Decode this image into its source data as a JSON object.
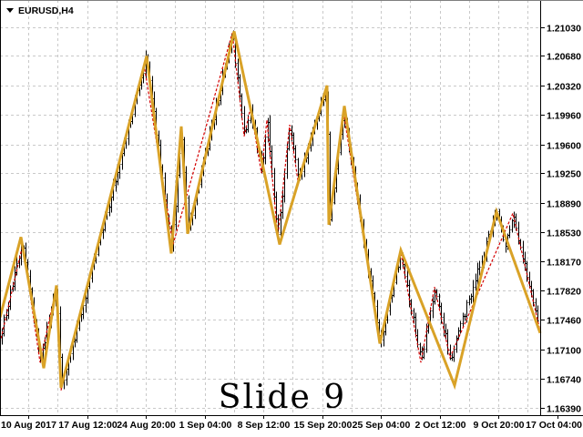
{
  "chart": {
    "symbol_label": "EURUSD,H4",
    "annotation": "Slide 9",
    "colors": {
      "background": "#ffffff",
      "grid": "#c9c9c9",
      "axis": "#000000",
      "bars": "#000000",
      "zigzag_primary": "#D9A227",
      "zigzag_secondary": "#D40000",
      "text": "#000000",
      "window_border": "#808080"
    }
  },
  "chart_data": {
    "type": "bar",
    "subtype": "ohlc-bars-with-zigzag-overlays",
    "symbol": "EURUSD",
    "timeframe": "H4",
    "title": "EURUSD,H4",
    "annotation": "Slide 9",
    "grid": {
      "visible": true,
      "style": "dashed"
    },
    "y_axis": {
      "side": "right",
      "labels": [
        "1.21030",
        "1.20680",
        "1.20320",
        "1.19960",
        "1.19600",
        "1.19250",
        "1.18890",
        "1.18530",
        "1.18170",
        "1.17820",
        "1.17460",
        "1.17100",
        "1.16740",
        "1.16390"
      ],
      "range": [
        1.1639,
        1.2103
      ]
    },
    "x_axis": {
      "labels": [
        "10 Aug 2017",
        "17 Aug 12:00",
        "24 Aug 20:00",
        "1 Sep 04:00",
        "8 Sep 12:00",
        "15 Sep 20:00",
        "25 Sep 04:00",
        "2 Oct 12:00",
        "9 Oct 20:00",
        "17 Oct 04:00"
      ]
    },
    "series": [
      {
        "name": "zigzag-primary",
        "color": "#D9A227",
        "width": 3,
        "style": "solid",
        "points_x_price": [
          [
            0,
            1.1749
          ],
          [
            23,
            1.1847
          ],
          [
            48,
            1.1687
          ],
          [
            62,
            1.1788
          ],
          [
            67,
            1.1663
          ],
          [
            161,
            1.2068
          ],
          [
            188,
            1.1827
          ],
          [
            199,
            1.1982
          ],
          [
            206,
            1.1851
          ],
          [
            257,
            1.2098
          ],
          [
            307,
            1.1838
          ],
          [
            359,
            1.2032
          ],
          [
            361,
            1.1862
          ],
          [
            378,
            1.2007
          ],
          [
            417,
            1.1717
          ],
          [
            440,
            1.1831
          ],
          [
            499,
            1.1666
          ],
          [
            545,
            1.1878
          ],
          [
            593,
            1.173
          ]
        ]
      },
      {
        "name": "zigzag-secondary",
        "color": "#D40000",
        "width": 1.2,
        "style": "dashed",
        "points_x_price": [
          [
            0,
            1.1718
          ],
          [
            25,
            1.1838
          ],
          [
            44,
            1.1694
          ],
          [
            62,
            1.1786
          ],
          [
            67,
            1.166
          ],
          [
            158,
            1.2058
          ],
          [
            190,
            1.1838
          ],
          [
            255,
            1.2096
          ],
          [
            268,
            1.197
          ],
          [
            275,
            1.2005
          ],
          [
            287,
            1.1925
          ],
          [
            293,
            1.199
          ],
          [
            305,
            1.1848
          ],
          [
            318,
            1.1984
          ],
          [
            327,
            1.1916
          ],
          [
            358,
            1.203
          ],
          [
            362,
            1.1866
          ],
          [
            377,
            1.2
          ],
          [
            417,
            1.172
          ],
          [
            440,
            1.1828
          ],
          [
            462,
            1.1694
          ],
          [
            477,
            1.1786
          ],
          [
            494,
            1.17
          ],
          [
            563,
            1.1876
          ],
          [
            593,
            1.1732
          ]
        ]
      },
      {
        "name": "price-bars",
        "color": "#000000",
        "bar_count": 251,
        "approx_close_path_x_price": [
          [
            0,
            1.1725
          ],
          [
            25,
            1.184
          ],
          [
            44,
            1.1695
          ],
          [
            62,
            1.1786
          ],
          [
            67,
            1.1662
          ],
          [
            158,
            1.2055
          ],
          [
            161,
            1.2068
          ],
          [
            188,
            1.183
          ],
          [
            199,
            1.1975
          ],
          [
            207,
            1.1856
          ],
          [
            255,
            1.2096
          ],
          [
            268,
            1.197
          ],
          [
            275,
            1.2005
          ],
          [
            287,
            1.1925
          ],
          [
            293,
            1.199
          ],
          [
            305,
            1.1848
          ],
          [
            318,
            1.1984
          ],
          [
            327,
            1.1916
          ],
          [
            358,
            1.203
          ],
          [
            362,
            1.1866
          ],
          [
            377,
            1.2
          ],
          [
            417,
            1.1718
          ],
          [
            440,
            1.183
          ],
          [
            462,
            1.1695
          ],
          [
            477,
            1.1786
          ],
          [
            494,
            1.17
          ],
          [
            545,
            1.1878
          ],
          [
            555,
            1.184
          ],
          [
            563,
            1.1876
          ],
          [
            593,
            1.1734
          ]
        ]
      }
    ]
  }
}
